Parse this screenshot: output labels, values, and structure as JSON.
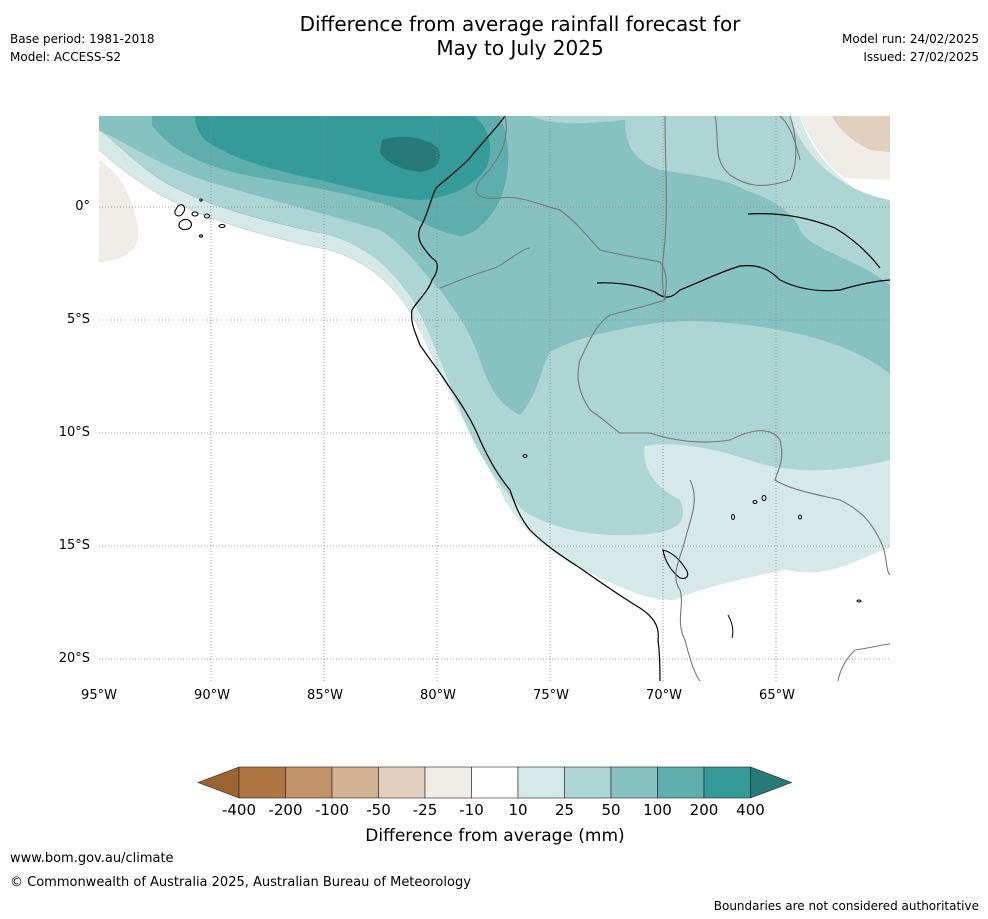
{
  "header": {
    "title_line1": "Difference from average rainfall forecast for",
    "title_line2": "May to July 2025",
    "base_period": "Base period: 1981-2018",
    "model": "Model: ACCESS-S2",
    "model_run": "Model run: 24/02/2025",
    "issued": "Issued: 27/02/2025"
  },
  "map": {
    "lat_labels": [
      "0°",
      "5°S",
      "10°S",
      "15°S",
      "20°S"
    ],
    "lon_labels": [
      "95°W",
      "90°W",
      "85°W",
      "80°W",
      "75°W",
      "70°W",
      "65°W"
    ],
    "region": "Western South America (Ecuador, Peru, Bolivia)"
  },
  "colorbar": {
    "title": "Difference from average (mm)",
    "tick_labels": [
      "-400",
      "-200",
      "-100",
      "-50",
      "-25",
      "-10",
      "10",
      "25",
      "50",
      "100",
      "200",
      "400"
    ],
    "colors": [
      "#9b6430",
      "#af7540",
      "#c29268",
      "#d3b293",
      "#e2cfbe",
      "#f0ede8",
      "#ffffff",
      "#d5e9e8",
      "#acd5d4",
      "#85c2c1",
      "#5daead",
      "#349b99",
      "#267a78"
    ]
  },
  "footer": {
    "url": "www.bom.gov.au/climate",
    "copyright": "© Commonwealth of Australia 2025, Australian Bureau of Meteorology",
    "disclaimer": "Boundaries are not considered authoritative"
  }
}
